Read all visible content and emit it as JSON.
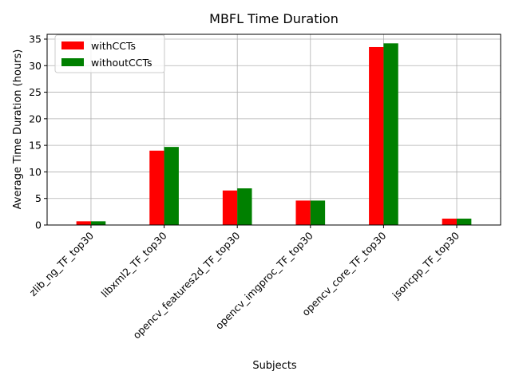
{
  "chart_data": {
    "type": "bar",
    "title": "MBFL Time Duration",
    "xlabel": "Subjects",
    "ylabel": "Average Time Duration (hours)",
    "categories": [
      "zlib_ng_TF_top30",
      "libxml2_TF_top30",
      "opencv_features2d_TF_top30",
      "opencv_imgproc_TF_top30",
      "opencv_core_TF_top30",
      "jsoncpp_TF_top30"
    ],
    "series": [
      {
        "name": "withCCTs",
        "color": "#ff0000",
        "values": [
          0.7,
          14.0,
          6.5,
          4.6,
          33.5,
          1.2
        ]
      },
      {
        "name": "withoutCCTs",
        "color": "#008000",
        "values": [
          0.7,
          14.7,
          6.9,
          4.6,
          34.2,
          1.2
        ]
      }
    ],
    "ylim": [
      0,
      35.9
    ],
    "yticks": [
      0,
      5,
      10,
      15,
      20,
      25,
      30,
      35
    ],
    "grid": true,
    "legend_position": "top-left"
  }
}
